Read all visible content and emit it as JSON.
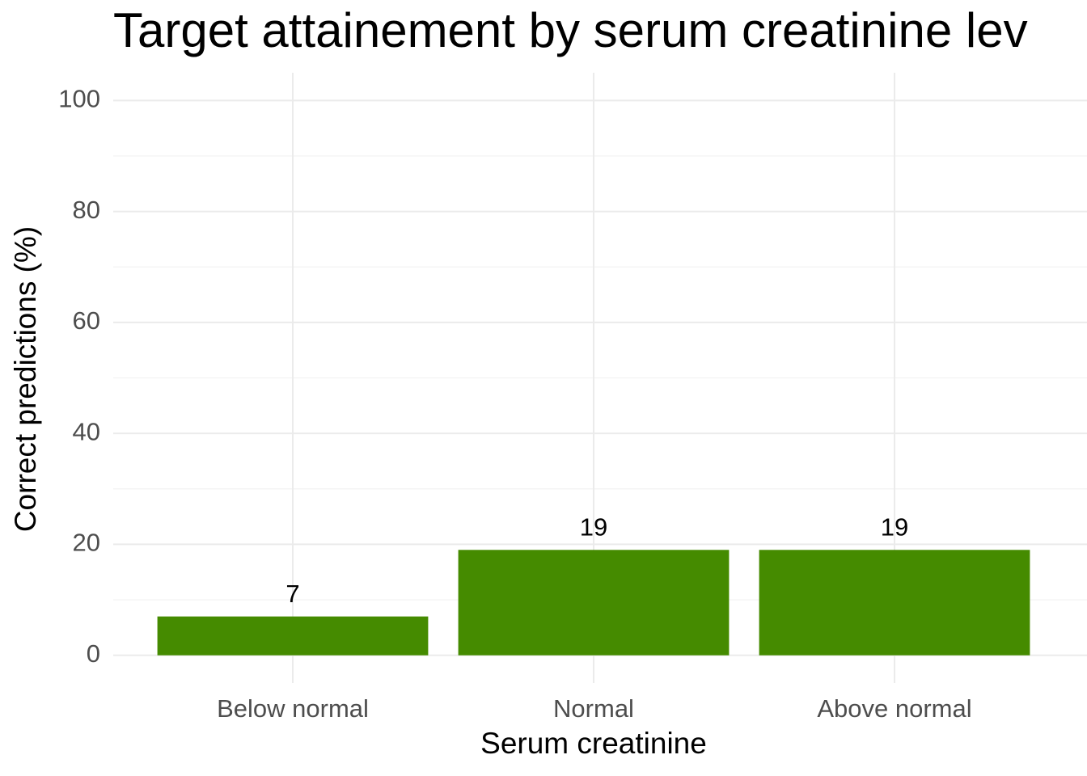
{
  "chart_data": {
    "type": "bar",
    "title": "Target attainement by serum creatinine lev",
    "x_label": "Serum creatinine",
    "y_label": "Correct predictions (%)",
    "categories": [
      "Below normal",
      "Normal",
      "Above normal"
    ],
    "values": [
      7,
      19,
      19
    ],
    "color": "#458b00",
    "ylim": [
      -5,
      105
    ],
    "yticks": [
      0,
      20,
      40,
      60,
      80,
      100
    ],
    "minor_yticks": [
      10,
      30,
      50,
      70,
      90
    ],
    "grid": true
  }
}
